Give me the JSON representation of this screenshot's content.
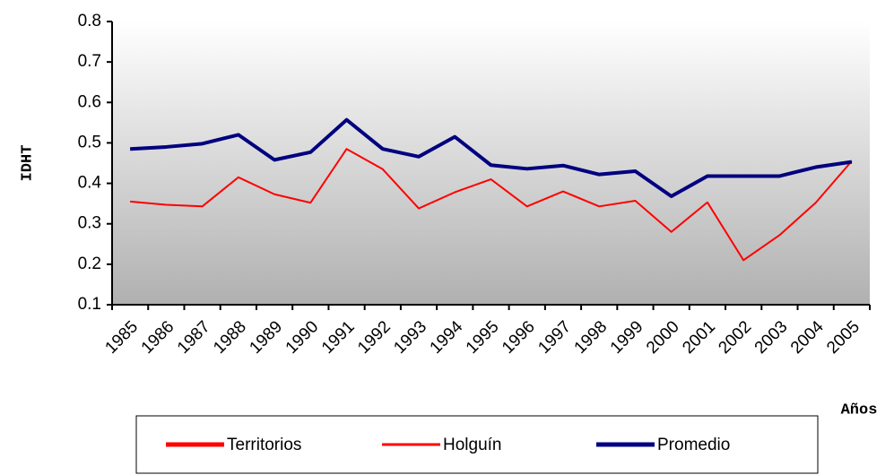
{
  "chart_data": {
    "type": "line",
    "categories": [
      "1985",
      "1986",
      "1987",
      "1988",
      "1989",
      "1990",
      "1991",
      "1992",
      "1993",
      "1994",
      "1995",
      "1996",
      "1997",
      "1998",
      "1999",
      "2000",
      "2001",
      "2002",
      "2003",
      "2004",
      "2005"
    ],
    "series": [
      {
        "name": "Territorios",
        "color": "#ff0000",
        "values": [
          null,
          null,
          null,
          null,
          null,
          null,
          null,
          null,
          null,
          null,
          null,
          null,
          null,
          null,
          null,
          null,
          null,
          null,
          null,
          null,
          null
        ]
      },
      {
        "name": "Holguín",
        "color": "#ff0000",
        "values": [
          0.355,
          0.347,
          0.343,
          0.415,
          0.373,
          0.352,
          0.485,
          0.435,
          0.338,
          0.378,
          0.41,
          0.343,
          0.38,
          0.343,
          0.357,
          0.28,
          0.353,
          0.21,
          0.272,
          0.352,
          0.455
        ]
      },
      {
        "name": "Promedio",
        "color": "#000080",
        "values": [
          0.485,
          0.49,
          0.498,
          0.52,
          0.458,
          0.477,
          0.557,
          0.485,
          0.466,
          0.515,
          0.445,
          0.436,
          0.444,
          0.422,
          0.43,
          0.368,
          0.418,
          0.418,
          0.418,
          0.44,
          0.453
        ]
      }
    ],
    "ylabel": "IDHT",
    "xlabel": "Años",
    "ylim": [
      0.1,
      0.8
    ],
    "yticks": [
      0.1,
      0.2,
      0.3,
      0.4,
      0.5,
      0.6,
      0.7,
      0.8
    ]
  }
}
